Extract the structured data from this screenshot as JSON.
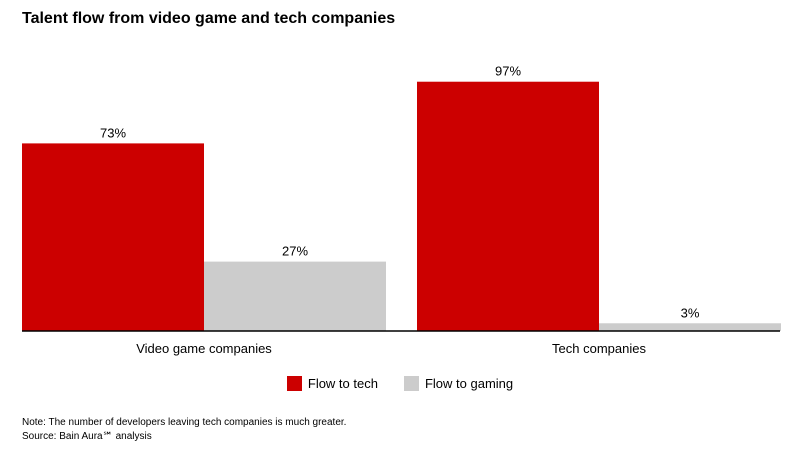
{
  "chart_data": {
    "type": "bar",
    "title": "Talent flow from video game and tech companies",
    "categories": [
      "Video game companies",
      "Tech companies"
    ],
    "series": [
      {
        "name": "Flow to tech",
        "values": [
          73,
          97
        ],
        "labels": [
          "73%",
          "97%"
        ],
        "color": "#cc0000"
      },
      {
        "name": "Flow to gaming",
        "values": [
          27,
          3
        ],
        "labels": [
          "27%",
          "3%"
        ],
        "color": "#cccccc"
      }
    ],
    "ylim": [
      0,
      100
    ],
    "grid": false,
    "legend_position": "bottom-center",
    "note": "Note: The number of developers leaving tech companies is much greater.",
    "source": "Source: Bain Aura℠ analysis"
  }
}
